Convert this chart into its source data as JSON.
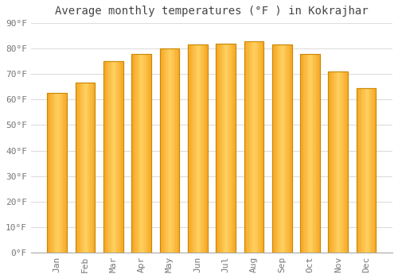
{
  "title": "Average monthly temperatures (°F ) in Kokrajhar",
  "months": [
    "Jan",
    "Feb",
    "Mar",
    "Apr",
    "May",
    "Jun",
    "Jul",
    "Aug",
    "Sep",
    "Oct",
    "Nov",
    "Dec"
  ],
  "values": [
    62.5,
    66.5,
    75.0,
    78.0,
    80.0,
    81.5,
    82.0,
    83.0,
    81.5,
    78.0,
    71.0,
    64.5
  ],
  "bar_color_bottom": "#F5A623",
  "bar_color_mid": "#FFC04C",
  "bar_color_top": "#FFD060",
  "bar_edge_color": "#CC8800",
  "ylim": [
    0,
    90
  ],
  "yticks": [
    0,
    10,
    20,
    30,
    40,
    50,
    60,
    70,
    80,
    90
  ],
  "background_color": "#FFFFFF",
  "grid_color": "#DDDDDD",
  "title_fontsize": 10,
  "tick_fontsize": 8,
  "title_color": "#444444",
  "tick_color": "#777777",
  "bar_width": 0.7
}
